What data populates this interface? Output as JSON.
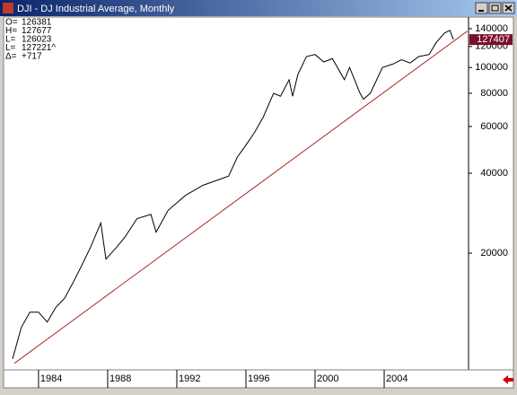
{
  "window_title": "DJI - DJ Industrial Average, Monthly",
  "chart_data": {
    "type": "line",
    "log_y": true,
    "info_box": [
      {
        "label": "O=",
        "value": "126381"
      },
      {
        "label": "H=",
        "value": "127677"
      },
      {
        "label": "L=",
        "value": "126023"
      },
      {
        "label": "L=",
        "value": "127221^"
      },
      {
        "label": "Δ=",
        "value": "+717"
      }
    ],
    "xlim": [
      1982.03,
      2008.88
    ],
    "xticks": [
      1984,
      1988,
      1992,
      1996,
      2000,
      2004
    ],
    "ylim": [
      7330,
      154900
    ],
    "yticks": [
      20000,
      40000,
      60000,
      80000,
      100000,
      120000,
      140000
    ],
    "last_value": 127407,
    "last_color": "#7a0f2a",
    "series": [
      {
        "name": "DJI",
        "color": "#000000",
        "x": [
          1982.5,
          1983.0,
          1983.5,
          1984.0,
          1984.5,
          1985.0,
          1985.5,
          1986.0,
          1986.5,
          1987.0,
          1987.6,
          1987.9,
          1988.5,
          1989.0,
          1989.7,
          1990.5,
          1990.8,
          1991.5,
          1992.5,
          1993.5,
          1994.5,
          1995.0,
          1995.5,
          1996.0,
          1996.5,
          1997.0,
          1997.6,
          1998.0,
          1998.5,
          1998.7,
          1999.0,
          1999.5,
          2000.0,
          2000.5,
          2001.0,
          2001.7,
          2002.0,
          2002.6,
          2002.8,
          2003.2,
          2003.9,
          2004.5,
          2005.0,
          2005.5,
          2006.0,
          2006.6,
          2007.0,
          2007.5,
          2007.8,
          2008.0
        ],
        "values": [
          8000,
          10500,
          12000,
          12000,
          11000,
          12500,
          13500,
          15500,
          18000,
          21000,
          26000,
          19000,
          21000,
          23000,
          27000,
          28000,
          24000,
          29000,
          33000,
          36000,
          38000,
          39000,
          46000,
          51000,
          57000,
          65000,
          80000,
          78000,
          90000,
          78000,
          94000,
          110000,
          112000,
          105000,
          108000,
          90000,
          100000,
          80000,
          76000,
          80000,
          100000,
          103000,
          107000,
          104000,
          110000,
          112000,
          124000,
          135000,
          138000,
          127407
        ]
      },
      {
        "name": "Trend",
        "color": "#b22222",
        "x": [
          1982.6,
          2008.8
        ],
        "values": [
          7700,
          137000
        ]
      }
    ]
  }
}
